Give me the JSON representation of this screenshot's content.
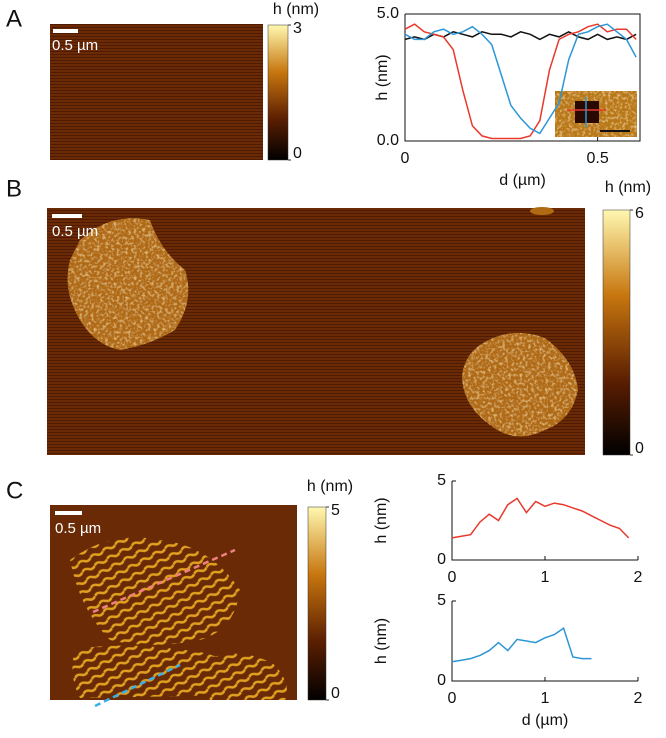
{
  "figure": {
    "panel_labels": [
      "A",
      "B",
      "C"
    ],
    "scale_bar_labels": [
      "0.5 µm",
      "0.5 µm",
      "0.5 µm"
    ]
  },
  "chart_data": [
    {
      "type": "colorbar",
      "label": "h (nm)",
      "ylim": [
        0,
        3
      ],
      "yticks": [
        0,
        3
      ]
    },
    {
      "type": "line",
      "xlabel": "d (µm)",
      "ylabel": "h (nm)",
      "x": [
        0,
        0.025,
        0.05,
        0.075,
        0.1,
        0.125,
        0.15,
        0.175,
        0.2,
        0.225,
        0.25,
        0.275,
        0.3,
        0.325,
        0.35,
        0.375,
        0.4,
        0.425,
        0.45,
        0.475,
        0.5,
        0.525,
        0.55,
        0.575,
        0.6
      ],
      "xlim": [
        0,
        0.61
      ],
      "ylim": [
        0,
        5
      ],
      "xticks": [
        0,
        0.5
      ],
      "yticks": [
        {
          "value": 0,
          "label": "0.0"
        },
        {
          "value": 5,
          "label": "5.0"
        }
      ],
      "series": [
        {
          "color": "#111111",
          "values": [
            4.0,
            4.1,
            4.0,
            4.2,
            4.1,
            4.3,
            4.2,
            4.1,
            4.3,
            4.2,
            4.2,
            4.1,
            4.3,
            4.2,
            4.0,
            4.2,
            4.1,
            4.3,
            4.1,
            4.0,
            4.2,
            4.0,
            4.1,
            4.0,
            4.2
          ]
        },
        {
          "color": "#e8392c",
          "values": [
            4.4,
            4.6,
            4.3,
            4.2,
            4.1,
            3.6,
            2.0,
            0.6,
            0.2,
            0.1,
            0.1,
            0.1,
            0.1,
            0.2,
            0.8,
            2.8,
            4.0,
            4.2,
            4.3,
            4.5,
            4.6,
            4.3,
            4.4,
            4.4,
            4.0
          ]
        },
        {
          "color": "#2c96d6",
          "values": [
            4.2,
            4.0,
            4.0,
            4.3,
            4.4,
            4.2,
            4.3,
            4.5,
            4.2,
            3.8,
            2.6,
            1.4,
            0.9,
            0.5,
            0.3,
            0.9,
            1.5,
            3.2,
            4.2,
            4.3,
            4.5,
            4.6,
            4.3,
            4.0,
            3.3
          ]
        }
      ]
    },
    {
      "type": "colorbar",
      "label": "h (nm)",
      "ylim": [
        0,
        6
      ],
      "yticks": [
        0,
        6
      ]
    },
    {
      "type": "colorbar",
      "label": "h (nm)",
      "ylim": [
        0,
        5
      ],
      "yticks": [
        0,
        5
      ]
    },
    {
      "type": "line",
      "ylabel": "h (nm)",
      "x": [
        0,
        0.1,
        0.2,
        0.3,
        0.4,
        0.5,
        0.6,
        0.7,
        0.8,
        0.9,
        1.0,
        1.1,
        1.2,
        1.3,
        1.4,
        1.5,
        1.6,
        1.7,
        1.8,
        1.9
      ],
      "xlim": [
        0,
        2
      ],
      "ylim": [
        0,
        5
      ],
      "xticks": [
        0,
        1,
        2
      ],
      "yticks": [
        0,
        5
      ],
      "series": [
        {
          "color": "#e8392c",
          "values": [
            1.4,
            1.5,
            1.6,
            2.4,
            2.9,
            2.5,
            3.5,
            3.9,
            3.0,
            3.7,
            3.4,
            3.6,
            3.5,
            3.3,
            3.1,
            2.8,
            2.5,
            2.2,
            2.0,
            1.4
          ]
        }
      ]
    },
    {
      "type": "line",
      "xlabel": "d (µm)",
      "ylabel": "h (nm)",
      "x": [
        0,
        0.1,
        0.2,
        0.3,
        0.4,
        0.5,
        0.6,
        0.7,
        0.8,
        0.9,
        1.0,
        1.1,
        1.2,
        1.3,
        1.4,
        1.5
      ],
      "xlim": [
        0,
        2
      ],
      "ylim": [
        0,
        5
      ],
      "xticks": [
        0,
        1,
        2
      ],
      "yticks": [
        0,
        5
      ],
      "series": [
        {
          "color": "#2c96d6",
          "values": [
            1.2,
            1.3,
            1.4,
            1.6,
            1.9,
            2.4,
            1.9,
            2.6,
            2.5,
            2.4,
            2.7,
            2.9,
            3.3,
            1.5,
            1.4,
            1.4
          ]
        }
      ]
    }
  ]
}
